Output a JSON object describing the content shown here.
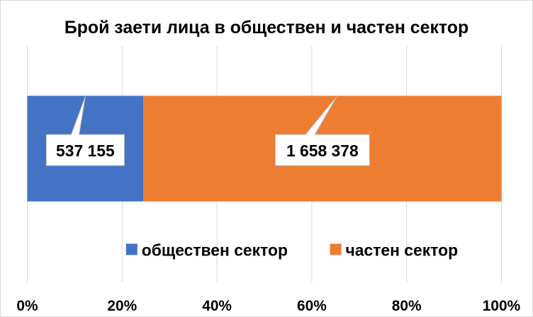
{
  "chart_data": {
    "type": "bar",
    "orientation": "horizontal",
    "stacked": "percent",
    "title": "Брой заети лица в обществен и частен сектор",
    "categories": [
      ""
    ],
    "series": [
      {
        "name": "обществен сектор",
        "values": [
          537155
        ],
        "label": "537 155",
        "color": "#4472c4"
      },
      {
        "name": "частен сектор",
        "values": [
          1658378
        ],
        "label": "1 658 378",
        "color": "#ed7d31"
      }
    ],
    "xlim": [
      0,
      100
    ],
    "xticks": [
      "0%",
      "20%",
      "40%",
      "60%",
      "80%",
      "100%"
    ],
    "grid": true,
    "legend": "bottom"
  }
}
